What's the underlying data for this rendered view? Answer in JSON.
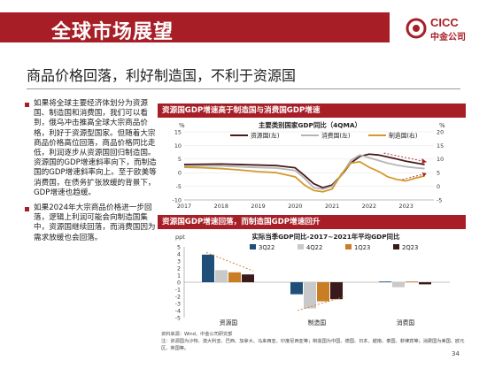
{
  "header": {
    "title": "全球市场展望",
    "logo_text": "CICC",
    "logo_sub": "中金公司"
  },
  "subtitle": "商品价格回落，利好制造国，不利于资源国",
  "bullets": [
    "如果将全球主要经济体划分为资源国、制造国和消费国，我们可以看到，俄乌冲击推高全球大宗商品价格，利好于资源型国家。但随着大宗商品价格高位回落，商品价格同比走低，利润逐步从资源国回归制造国。资源国的GDP增速斜率向下，而制造国的GDP增速斜率向上。至于欧美等消费国，在债务扩张放缓的背景下，GDP增速也趋缓。",
    "如果2024年大宗商品价格进一步回落，逻辑上利润可能会向制造国集中，资源国继续回落，而消费国因为需求放缓也会回落。"
  ],
  "chart1": {
    "panel_title": "资源国GDP增速高于制造国与消费国GDP增速",
    "inner_title": "主要类别国家GDP同比（4QMA）",
    "left_unit": "%",
    "right_unit": "%"
  },
  "chart2": {
    "panel_title": "资源国GDP增速回落，而制造国GDP增速回升",
    "inner_title": "实际当季GDP同比-2017~2021年平均GDP同比",
    "unit": "ppt"
  },
  "source_text": "资料来源：Wind、中金公司研究部",
  "note_text": "注：资源国为沙特、澳大利亚、巴西、加拿大、马来西亚、印度尼西亚等；制造国为中国、德国、日本、越南、泰国、菲律宾等；消费国为美国、欧元区、英国等。",
  "page_number": "34",
  "colors": {
    "brand": "#a71e26",
    "resource": "#4a1c1c",
    "consumer": "#b5b5b5",
    "manufacturing": "#d39a2b"
  },
  "chart_data": [
    {
      "type": "line",
      "title": "主要类别国家GDP同比（4QMA）",
      "x": [
        "2017",
        "2017.5",
        "2018",
        "2018.5",
        "2019",
        "2019.5",
        "2020",
        "2020.25",
        "2020.5",
        "2020.75",
        "2021",
        "2021.25",
        "2021.5",
        "2021.75",
        "2022",
        "2022.25",
        "2022.5",
        "2022.75",
        "2023",
        "2023.25",
        "2023.5"
      ],
      "x_ticks": [
        "2017",
        "2018",
        "2019",
        "2020",
        "2021",
        "2022",
        "2023"
      ],
      "y_left_ticks": [
        "15",
        "10",
        "5",
        "0",
        "-5",
        "-10"
      ],
      "y_right_ticks": [
        "20",
        "15",
        "10",
        "5",
        "0",
        "-5"
      ],
      "ylim_left": [
        -10,
        15
      ],
      "ylim_right": [
        -5,
        20
      ],
      "series": [
        {
          "name": "资源国(左)",
          "axis": "left",
          "values": [
            3.0,
            3.1,
            3.2,
            3.0,
            2.8,
            2.6,
            1.8,
            -1.0,
            -4.0,
            -5.5,
            -4.5,
            -1.0,
            3.5,
            6.0,
            6.8,
            6.5,
            5.8,
            5.0,
            4.2,
            3.6,
            3.0
          ]
        },
        {
          "name": "消费国(左)",
          "axis": "left",
          "values": [
            2.4,
            2.5,
            2.5,
            2.2,
            1.9,
            1.7,
            0.8,
            -2.0,
            -5.5,
            -6.0,
            -5.0,
            -1.0,
            4.5,
            6.5,
            5.5,
            4.5,
            3.5,
            2.8,
            2.2,
            1.8,
            1.5
          ]
        },
        {
          "name": "制造国(右)",
          "axis": "right",
          "values": [
            7.0,
            6.8,
            6.5,
            6.0,
            5.4,
            5.0,
            3.5,
            0.5,
            -1.5,
            -2.0,
            -1.0,
            4.5,
            8.5,
            9.0,
            7.0,
            5.5,
            3.5,
            2.5,
            2.0,
            3.0,
            3.8
          ]
        }
      ]
    },
    {
      "type": "bar",
      "title": "实际当季GDP同比-2017~2021年平均GDP同比",
      "categories": [
        "资源国",
        "制造国",
        "消费国"
      ],
      "y_ticks": [
        "5",
        "4",
        "3",
        "2",
        "1",
        "0",
        "-1",
        "-2",
        "-3",
        "-4",
        "-5"
      ],
      "ylim": [
        -5,
        5
      ],
      "series": [
        {
          "name": "3Q22",
          "values": [
            3.9,
            -1.7,
            0.1
          ]
        },
        {
          "name": "4Q22",
          "values": [
            1.7,
            -3.7,
            -0.7
          ]
        },
        {
          "name": "1Q23",
          "values": [
            1.4,
            -2.7,
            0.1
          ]
        },
        {
          "name": "2Q23",
          "values": [
            1.1,
            -2.4,
            -0.3
          ]
        }
      ]
    }
  ]
}
